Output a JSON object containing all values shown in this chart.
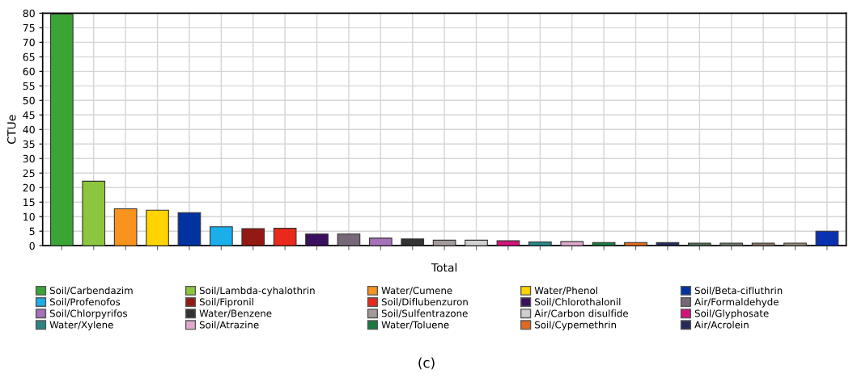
{
  "chart_data": {
    "type": "bar",
    "xlabel": "Total",
    "ylabel": "CTUe",
    "ylim": [
      0,
      80
    ],
    "yticks": [
      0,
      5,
      10,
      15,
      20,
      25,
      30,
      35,
      40,
      45,
      50,
      55,
      60,
      65,
      70,
      75,
      80
    ],
    "grid": true,
    "legend": "bottom",
    "categories": [
      null,
      null,
      null,
      null,
      null,
      null,
      null,
      null,
      null,
      null,
      null,
      null,
      null,
      null,
      null,
      null,
      null,
      null,
      null,
      null,
      null,
      null,
      null,
      null,
      null
    ],
    "series": [
      {
        "name": "Soil/Carbendazim",
        "color": "#3aa535",
        "values": [
          79.7,
          null,
          null,
          null,
          null,
          null,
          null,
          null,
          null,
          null,
          null,
          null,
          null,
          null,
          null,
          null,
          null,
          null,
          null,
          null,
          null,
          null,
          null,
          null,
          null
        ]
      },
      {
        "name": "Soil/Lambda-cyhalothrin",
        "color": "#8cc63f",
        "values": [
          null,
          22.2,
          null,
          null,
          null,
          null,
          null,
          null,
          null,
          null,
          null,
          null,
          null,
          null,
          null,
          null,
          null,
          null,
          null,
          null,
          null,
          null,
          null,
          null,
          null
        ]
      },
      {
        "name": "Water/Cumene",
        "color": "#f7931e",
        "values": [
          null,
          null,
          12.7,
          null,
          null,
          null,
          null,
          null,
          null,
          null,
          null,
          null,
          null,
          null,
          null,
          null,
          null,
          null,
          null,
          null,
          null,
          null,
          null,
          null,
          null
        ]
      },
      {
        "name": "Water/Phenol",
        "color": "#ffd400",
        "values": [
          null,
          null,
          null,
          12.2,
          null,
          null,
          null,
          null,
          null,
          null,
          null,
          null,
          null,
          null,
          null,
          null,
          null,
          null,
          null,
          null,
          null,
          null,
          null,
          null,
          null
        ]
      },
      {
        "name": "Soil/Beta-cifluthrin",
        "color": "#0033a0",
        "values": [
          null,
          null,
          null,
          null,
          11.4,
          null,
          null,
          null,
          null,
          null,
          null,
          null,
          null,
          null,
          null,
          null,
          null,
          null,
          null,
          null,
          null,
          null,
          null,
          null,
          null
        ]
      },
      {
        "name": "Soil/Profenofos",
        "color": "#1aafea",
        "values": [
          null,
          null,
          null,
          null,
          null,
          6.5,
          null,
          null,
          null,
          null,
          null,
          null,
          null,
          null,
          null,
          null,
          null,
          null,
          null,
          null,
          null,
          null,
          null,
          null,
          null
        ]
      },
      {
        "name": "Soil/Fipronil",
        "color": "#931a12",
        "values": [
          null,
          null,
          null,
          null,
          null,
          null,
          5.9,
          null,
          null,
          null,
          null,
          null,
          null,
          null,
          null,
          null,
          null,
          null,
          null,
          null,
          null,
          null,
          null,
          null,
          null
        ]
      },
      {
        "name": "Soil/Diflubenzuron",
        "color": "#e8291c",
        "values": [
          null,
          null,
          null,
          null,
          null,
          null,
          null,
          6.0,
          null,
          null,
          null,
          null,
          null,
          null,
          null,
          null,
          null,
          null,
          null,
          null,
          null,
          null,
          null,
          null,
          null
        ]
      },
      {
        "name": "Soil/Chlorothalonil",
        "color": "#3a0f5e",
        "values": [
          null,
          null,
          null,
          null,
          null,
          null,
          null,
          null,
          4.0,
          null,
          null,
          null,
          null,
          null,
          null,
          null,
          null,
          null,
          null,
          null,
          null,
          null,
          null,
          null,
          null
        ]
      },
      {
        "name": "Air/Formaldehyde",
        "color": "#766878",
        "values": [
          null,
          null,
          null,
          null,
          null,
          null,
          null,
          null,
          null,
          4.0,
          null,
          null,
          null,
          null,
          null,
          null,
          null,
          null,
          null,
          null,
          null,
          null,
          null,
          null,
          null
        ]
      },
      {
        "name": "Soil/Chlorpyrifos",
        "color": "#a571b8",
        "values": [
          null,
          null,
          null,
          null,
          null,
          null,
          null,
          null,
          null,
          null,
          2.6,
          null,
          null,
          null,
          null,
          null,
          null,
          null,
          null,
          null,
          null,
          null,
          null,
          null,
          null
        ]
      },
      {
        "name": "Water/Benzene",
        "color": "#333333",
        "values": [
          null,
          null,
          null,
          null,
          null,
          null,
          null,
          null,
          null,
          null,
          null,
          2.3,
          null,
          null,
          null,
          null,
          null,
          null,
          null,
          null,
          null,
          null,
          null,
          null,
          null
        ]
      },
      {
        "name": "Soil/Sulfentrazone",
        "color": "#a39a9a",
        "values": [
          null,
          null,
          null,
          null,
          null,
          null,
          null,
          null,
          null,
          null,
          null,
          null,
          1.9,
          null,
          null,
          null,
          null,
          null,
          null,
          null,
          null,
          null,
          null,
          null,
          null
        ]
      },
      {
        "name": "Air/Carbon disulfide",
        "color": "#d0d0d0",
        "values": [
          null,
          null,
          null,
          null,
          null,
          null,
          null,
          null,
          null,
          null,
          null,
          null,
          null,
          1.9,
          null,
          null,
          null,
          null,
          null,
          null,
          null,
          null,
          null,
          null,
          null
        ]
      },
      {
        "name": "Soil/Glyphosate",
        "color": "#d4137a",
        "values": [
          null,
          null,
          null,
          null,
          null,
          null,
          null,
          null,
          null,
          null,
          null,
          null,
          null,
          null,
          1.7,
          null,
          null,
          null,
          null,
          null,
          null,
          null,
          null,
          null,
          null
        ]
      },
      {
        "name": "Water/Xylene",
        "color": "#2a8585",
        "values": [
          null,
          null,
          null,
          null,
          null,
          null,
          null,
          null,
          null,
          null,
          null,
          null,
          null,
          null,
          null,
          1.3,
          null,
          null,
          null,
          null,
          null,
          null,
          null,
          null,
          null
        ]
      },
      {
        "name": "Soil/Atrazine",
        "color": "#e0a8d0",
        "values": [
          null,
          null,
          null,
          null,
          null,
          null,
          null,
          null,
          null,
          null,
          null,
          null,
          null,
          null,
          null,
          null,
          1.4,
          null,
          null,
          null,
          null,
          null,
          null,
          null,
          null
        ]
      },
      {
        "name": "Water/Toluene",
        "color": "#1a7a40",
        "values": [
          null,
          null,
          null,
          null,
          null,
          null,
          null,
          null,
          null,
          null,
          null,
          null,
          null,
          null,
          null,
          null,
          null,
          1.1,
          null,
          null,
          null,
          null,
          null,
          null,
          null
        ]
      },
      {
        "name": "Soil/Cypemethrin",
        "color": "#e06a20",
        "values": [
          null,
          null,
          null,
          null,
          null,
          null,
          null,
          null,
          null,
          null,
          null,
          null,
          null,
          null,
          null,
          null,
          null,
          null,
          1.1,
          null,
          null,
          null,
          null,
          null,
          null
        ]
      },
      {
        "name": "Air/Acrolein",
        "color": "#252a5a",
        "values": [
          null,
          null,
          null,
          null,
          null,
          null,
          null,
          null,
          null,
          null,
          null,
          null,
          null,
          null,
          null,
          null,
          null,
          null,
          null,
          1.1,
          null,
          null,
          null,
          null,
          null
        ]
      },
      {
        "color": "#4f6e55",
        "values": [
          null,
          null,
          null,
          null,
          null,
          null,
          null,
          null,
          null,
          null,
          null,
          null,
          null,
          null,
          null,
          null,
          null,
          null,
          null,
          null,
          0.9,
          null,
          null,
          null,
          null
        ]
      },
      {
        "color": "#6e7a6a",
        "values": [
          null,
          null,
          null,
          null,
          null,
          null,
          null,
          null,
          null,
          null,
          null,
          null,
          null,
          null,
          null,
          null,
          null,
          null,
          null,
          null,
          null,
          0.9,
          null,
          null,
          null
        ]
      },
      {
        "color": "#8a7468",
        "values": [
          null,
          null,
          null,
          null,
          null,
          null,
          null,
          null,
          null,
          null,
          null,
          null,
          null,
          null,
          null,
          null,
          null,
          null,
          null,
          null,
          null,
          null,
          0.9,
          null,
          null
        ]
      },
      {
        "color": "#968a7a",
        "values": [
          null,
          null,
          null,
          null,
          null,
          null,
          null,
          null,
          null,
          null,
          null,
          null,
          null,
          null,
          null,
          null,
          null,
          null,
          null,
          null,
          null,
          null,
          null,
          0.9,
          null
        ]
      },
      {
        "color": "#0a32b0",
        "values": [
          null,
          null,
          null,
          null,
          null,
          null,
          null,
          null,
          null,
          null,
          null,
          null,
          null,
          null,
          null,
          null,
          null,
          null,
          null,
          null,
          null,
          null,
          null,
          null,
          5.0
        ]
      }
    ],
    "annotations": [
      "(c)"
    ]
  }
}
